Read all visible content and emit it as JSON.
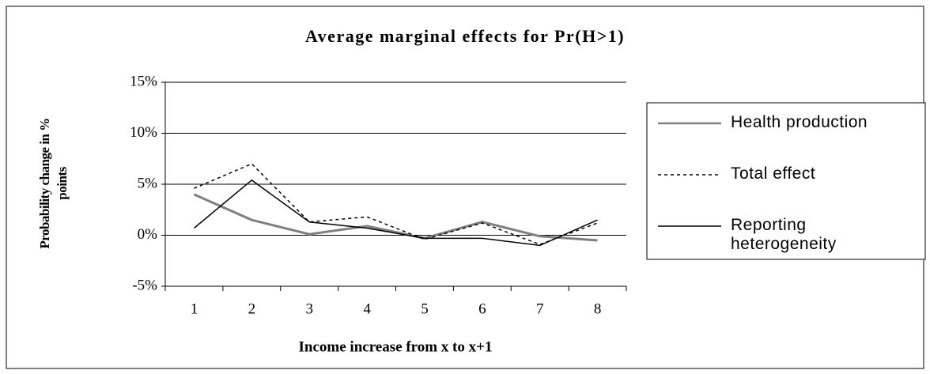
{
  "chart_data": {
    "type": "line",
    "title": "Average marginal effects for Pr(H>1)",
    "x_label": "Income increase from  x to x+1",
    "y_label": "Probability change in % points",
    "categories": [
      "1",
      "2",
      "3",
      "4",
      "5",
      "6",
      "7",
      "8"
    ],
    "series": [
      {
        "name": "Health production",
        "color": "#808080",
        "dash": "solid",
        "values": [
          4.0,
          1.5,
          0.1,
          0.9,
          -0.3,
          1.3,
          -0.1,
          -0.5
        ]
      },
      {
        "name": "Total effect",
        "color": "#000000",
        "dash": "dotted",
        "values": [
          4.6,
          7.0,
          1.3,
          1.8,
          -0.4,
          1.2,
          -0.9,
          1.2
        ]
      },
      {
        "name": "Reporting heterogeneity",
        "color": "#000000",
        "dash": "solid",
        "values": [
          0.7,
          5.4,
          1.3,
          0.7,
          -0.3,
          -0.3,
          -1.0,
          1.5
        ]
      }
    ],
    "ylim": [
      -5,
      15
    ],
    "yticks": [
      {
        "value": -5,
        "label": "-5%"
      },
      {
        "value": 0,
        "label": "0%"
      },
      {
        "value": 5,
        "label": "5%"
      },
      {
        "value": 10,
        "label": "10%"
      },
      {
        "value": 15,
        "label": "15%"
      }
    ],
    "grid": true,
    "legend": "right"
  }
}
